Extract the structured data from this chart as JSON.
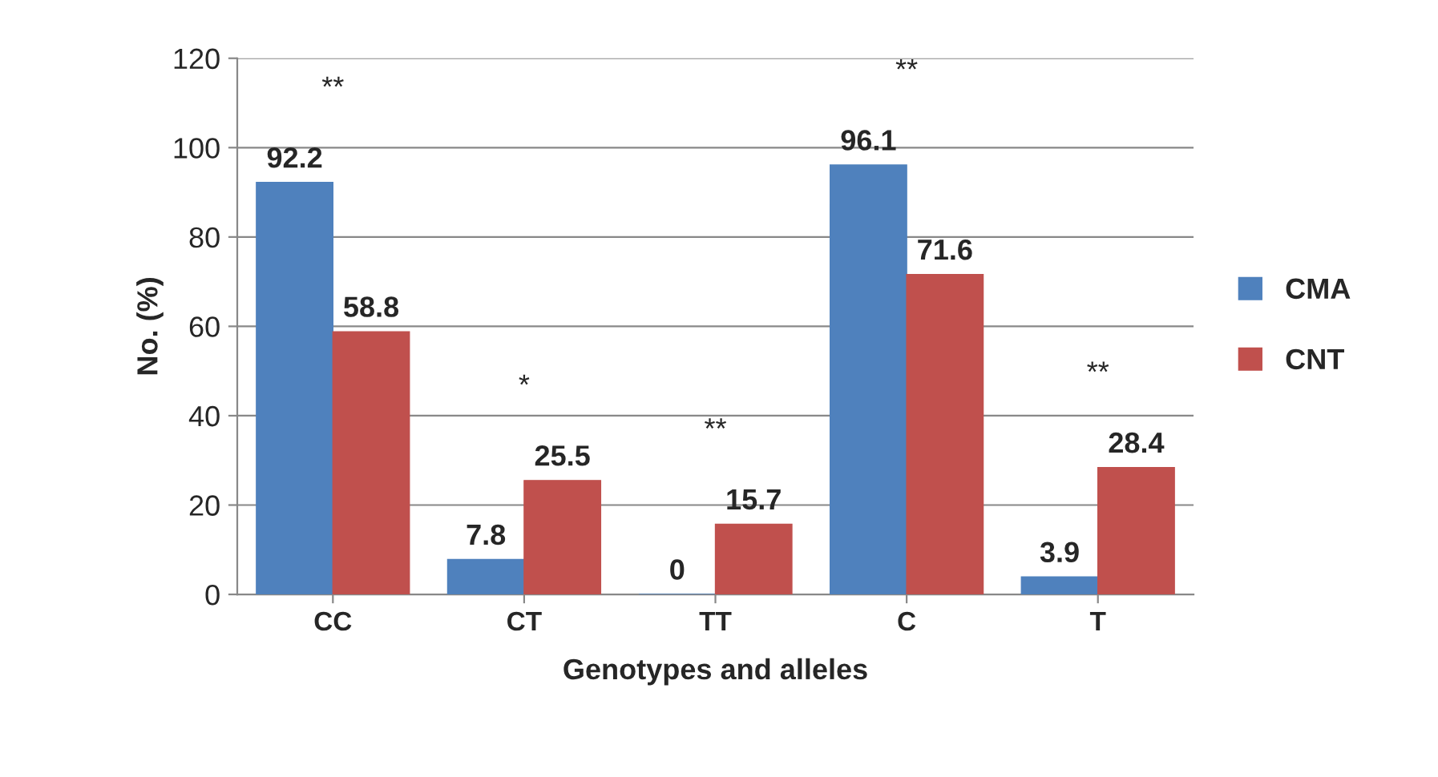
{
  "chart_data": {
    "type": "bar",
    "xlabel": "Genotypes and alleles",
    "ylabel": "No. (%)",
    "categories": [
      "CC",
      "CT",
      "TT",
      "C",
      "T"
    ],
    "series": [
      {
        "name": "CMA",
        "color": "#4f81bd",
        "values": [
          92.2,
          7.8,
          0,
          96.1,
          3.9
        ]
      },
      {
        "name": "CNT",
        "color": "#c0504d",
        "values": [
          58.8,
          25.5,
          15.7,
          71.6,
          28.4
        ]
      }
    ],
    "ylim": [
      0,
      120
    ],
    "yticks": [
      0,
      20,
      40,
      60,
      80,
      100,
      120
    ],
    "grid": "y",
    "legend": "right",
    "data_labels": true,
    "annotations": [
      "**",
      "*",
      "**",
      "**",
      "**"
    ]
  }
}
